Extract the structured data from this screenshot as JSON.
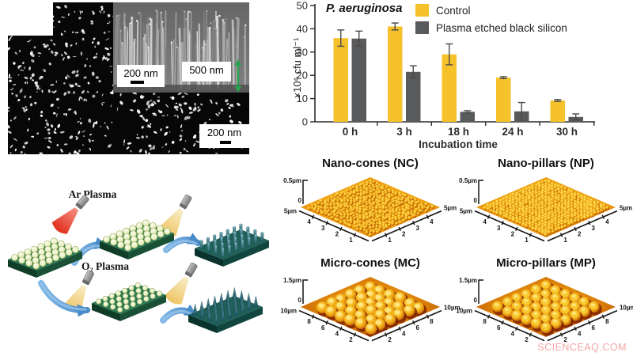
{
  "watermark": "SCIENCEAQ.COM",
  "sem_panel": {
    "main_scale_label": "200 nm",
    "inset_scale_left": "200 nm",
    "inset_scale_right": "500 nm"
  },
  "chart_data": {
    "type": "bar",
    "title": "P. aeruginosa",
    "ylabel": "×10⁶ cfu ml⁻¹",
    "xlabel": "Incubation time",
    "ylim": [
      0,
      50
    ],
    "yticks": [
      0,
      10,
      20,
      30,
      40,
      50
    ],
    "categories": [
      "0 h",
      "3 h",
      "18 h",
      "24 h",
      "30 h"
    ],
    "series": [
      {
        "name": "Control",
        "color": "#F6C22B",
        "values": [
          36,
          41,
          29,
          19,
          9.2
        ],
        "errors": [
          3.5,
          1.5,
          4.5,
          0.4,
          0.4
        ]
      },
      {
        "name": "Plasma etched black silicon",
        "color": "#595A5C",
        "values": [
          35.8,
          21.5,
          4.3,
          4.5,
          2.1
        ],
        "errors": [
          3.2,
          2.6,
          0.5,
          3.8,
          1.3
        ]
      }
    ],
    "legend_position": "top-right",
    "grid": false
  },
  "schematic": {
    "ar_label": "Ar Plasma",
    "o2_label": "O₂ Plasma"
  },
  "afm_panels": [
    {
      "title": "Nano-cones (NC)",
      "z_max": "0.5µm",
      "z_zero": "0",
      "axis_max": "5µm",
      "left_ticks": [
        "4",
        "3",
        "2",
        "1"
      ],
      "right_ticks": [
        "1",
        "2",
        "3",
        "4"
      ],
      "texture": "nano-cones"
    },
    {
      "title": "Nano-pillars (NP)",
      "z_max": "0.5µm",
      "z_zero": "0",
      "axis_max": "5µm",
      "left_ticks": [
        "4",
        "3",
        "2",
        "1"
      ],
      "right_ticks": [
        "1",
        "2",
        "3",
        "4"
      ],
      "texture": "nano-pillars"
    },
    {
      "title": "Micro-cones (MC)",
      "z_max": "1.5µm",
      "z_zero": "0",
      "axis_max": "10µm",
      "left_ticks": [
        "8",
        "6",
        "4",
        "2"
      ],
      "right_ticks": [
        "2",
        "4",
        "6",
        "8"
      ],
      "texture": "micro-cones"
    },
    {
      "title": "Micro-pillars (MP)",
      "z_max": "1.5µm",
      "z_zero": "0",
      "axis_max": "10µm",
      "left_ticks": [
        "8",
        "6",
        "4",
        "2"
      ],
      "right_ticks": [
        "2",
        "4",
        "6",
        "8"
      ],
      "texture": "micro-pillars"
    }
  ]
}
